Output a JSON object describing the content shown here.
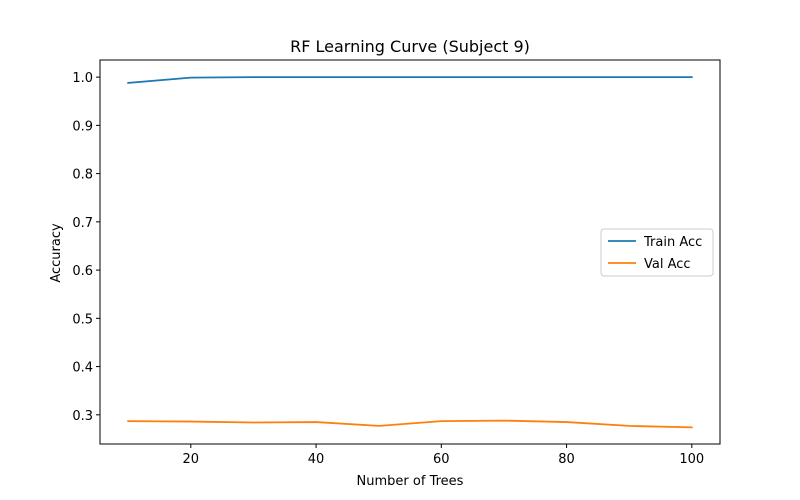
{
  "chart_data": {
    "type": "line",
    "title": "RF Learning Curve (Subject 9)",
    "xlabel": "Number of Trees",
    "ylabel": "Accuracy",
    "xlim": [
      5.5,
      104.5
    ],
    "ylim": [
      0.2395,
      1.0355
    ],
    "xticks": [
      20,
      40,
      60,
      80,
      100
    ],
    "yticks": [
      0.3,
      0.4,
      0.5,
      0.6,
      0.7,
      0.8,
      0.9,
      1.0
    ],
    "ytick_labels": [
      "0.3",
      "0.4",
      "0.5",
      "0.6",
      "0.7",
      "0.8",
      "0.9",
      "1.0"
    ],
    "x": [
      10,
      20,
      30,
      40,
      50,
      60,
      70,
      80,
      90,
      100
    ],
    "series": [
      {
        "name": "Train Acc",
        "color": "#1f77b4",
        "values": [
          0.988,
          0.999,
          1.0,
          1.0,
          1.0,
          1.0,
          1.0,
          1.0,
          1.0,
          1.0
        ]
      },
      {
        "name": "Val Acc",
        "color": "#ff7f0e",
        "values": [
          0.287,
          0.286,
          0.284,
          0.285,
          0.277,
          0.287,
          0.288,
          0.285,
          0.277,
          0.274
        ]
      }
    ],
    "grid": false,
    "legend": "center-right"
  }
}
